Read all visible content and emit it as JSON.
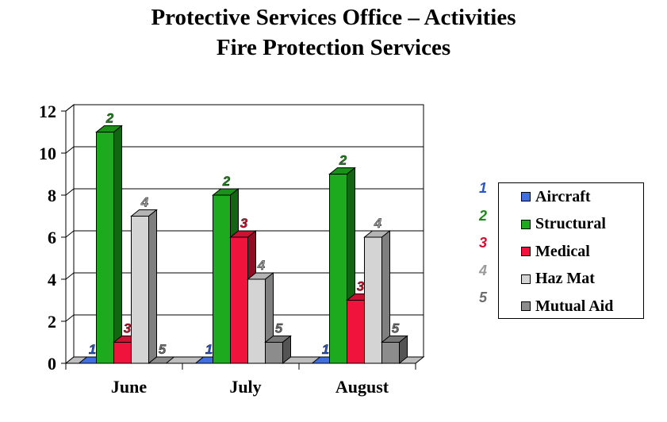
{
  "title_line1": "Protective Services Office – Activities",
  "title_line2": "Fire Protection Services",
  "chart_data": {
    "type": "bar",
    "categories": [
      "June",
      "July",
      "August"
    ],
    "ylim": [
      0,
      12
    ],
    "yticks": [
      0,
      2,
      4,
      6,
      8,
      10,
      12
    ],
    "grid": true,
    "legend_position": "right",
    "series": [
      {
        "name": "Aircraft",
        "number": "1",
        "color": "#3f6fe0",
        "values": [
          0,
          0,
          0
        ]
      },
      {
        "name": "Structural",
        "number": "2",
        "color": "#1eaa1e",
        "values": [
          11,
          8,
          9
        ]
      },
      {
        "name": "Medical",
        "number": "3",
        "color": "#f0143c",
        "values": [
          1,
          6,
          3
        ]
      },
      {
        "name": "Haz Mat",
        "number": "4",
        "color": "#d4d4d4",
        "values": [
          7,
          4,
          6
        ]
      },
      {
        "name": "Mutual Aid",
        "number": "5",
        "color": "#8c8c8c",
        "values": [
          0,
          1,
          1
        ]
      }
    ]
  }
}
